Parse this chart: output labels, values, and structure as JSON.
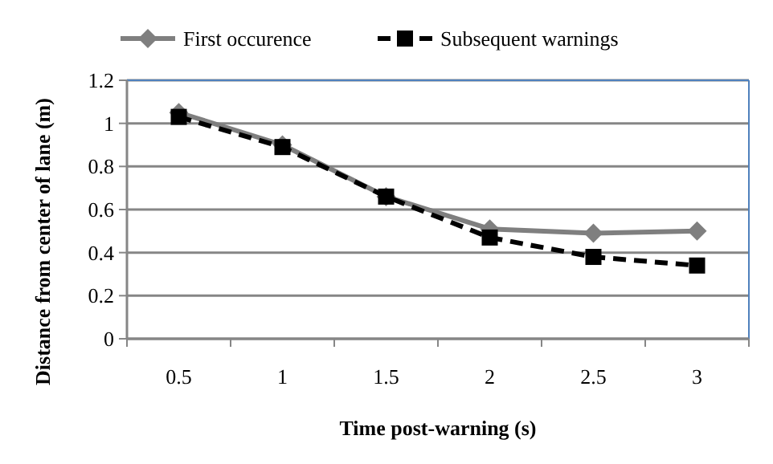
{
  "chart_data": {
    "type": "line",
    "xlabel": "Time post-warning (s)",
    "ylabel": "Distance from center of lane (m)",
    "categories": [
      "0.5",
      "1",
      "1.5",
      "2",
      "2.5",
      "3"
    ],
    "series": [
      {
        "name": "First occurence",
        "color": "#7f7f7f",
        "marker": "diamond",
        "line_style": "solid",
        "values": [
          1.05,
          0.9,
          0.66,
          0.51,
          0.49,
          0.5
        ]
      },
      {
        "name": "Subsequent warnings",
        "color": "#000000",
        "marker": "square",
        "line_style": "dashed",
        "values": [
          1.03,
          0.89,
          0.66,
          0.47,
          0.38,
          0.34
        ]
      }
    ],
    "ylim": [
      0,
      1.2
    ],
    "yticks": [
      0,
      0.2,
      0.4,
      0.6,
      0.8,
      1,
      1.2
    ],
    "grid": "y",
    "legend": "top left"
  }
}
